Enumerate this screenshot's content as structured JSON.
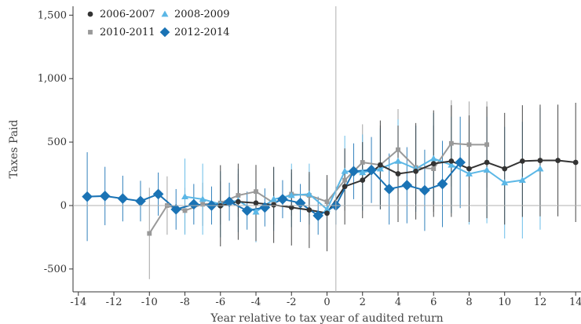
{
  "chart_data": {
    "type": "line",
    "title": "",
    "xlabel": "Year relative to tax year of audited return",
    "ylabel": "Taxes Paid",
    "xlim": [
      -14.3,
      14.3
    ],
    "ylim": [
      -680,
      1570
    ],
    "xticks": [
      -14,
      -12,
      -10,
      -8,
      -6,
      -4,
      -2,
      0,
      2,
      4,
      6,
      8,
      10,
      12,
      14
    ],
    "xtick_labels": [
      "-14",
      "-12",
      "-10",
      "-8",
      "-6",
      "-4",
      "-2",
      "0",
      "2",
      "4",
      "6",
      "8",
      "10",
      "12",
      "14"
    ],
    "yticks": [
      -500,
      0,
      500,
      1000,
      1500
    ],
    "ytick_labels": [
      "-500",
      "0",
      "500",
      "1,000",
      "1,500"
    ],
    "reference_lines": {
      "vertical_x": 0.5,
      "horizontal_y": 0
    },
    "grid": false,
    "legend_position": "top-left",
    "series": [
      {
        "name": "2006-2007",
        "color": "#333333",
        "marker": "circle",
        "x": [
          -6,
          -5,
          -4,
          -3,
          -2,
          -1,
          0,
          1,
          2,
          3,
          4,
          5,
          6,
          7,
          8,
          9,
          10,
          11,
          12,
          13,
          14
        ],
        "y": [
          -2,
          30,
          20,
          5,
          -15,
          -35,
          -60,
          150,
          200,
          320,
          250,
          270,
          330,
          350,
          290,
          340,
          290,
          350,
          355,
          355,
          340
        ],
        "err": [
          320,
          300,
          300,
          300,
          300,
          300,
          300,
          300,
          300,
          350,
          380,
          380,
          420,
          440,
          420,
          440,
          440,
          440,
          440,
          440,
          470
        ]
      },
      {
        "name": "2008-2009",
        "color": "#5bb7e6",
        "marker": "triangle",
        "x": [
          -8,
          -7,
          -6,
          -5,
          -4,
          -3,
          -2,
          -1,
          0,
          1,
          2,
          3,
          4,
          5,
          6,
          7,
          8,
          9,
          10,
          11,
          12
        ],
        "y": [
          70,
          50,
          10,
          40,
          -50,
          50,
          80,
          90,
          -30,
          270,
          260,
          290,
          350,
          290,
          370,
          320,
          250,
          280,
          180,
          200,
          290
        ],
        "err": [
          300,
          280,
          260,
          250,
          240,
          250,
          250,
          240,
          240,
          280,
          300,
          320,
          330,
          340,
          360,
          380,
          400,
          420,
          440,
          460,
          480
        ]
      },
      {
        "name": "2010-2011",
        "color": "#999999",
        "marker": "square",
        "x": [
          -10,
          -9,
          -8,
          -7,
          -6,
          -5,
          -4,
          -3,
          -2,
          -1,
          0,
          1,
          2,
          3,
          4,
          5,
          6,
          7,
          8,
          9
        ],
        "y": [
          -220,
          0,
          -40,
          10,
          20,
          80,
          110,
          20,
          90,
          80,
          30,
          200,
          340,
          320,
          440,
          300,
          290,
          490,
          480,
          480
        ],
        "err": [
          360,
          230,
          180,
          170,
          170,
          170,
          170,
          170,
          170,
          170,
          180,
          240,
          300,
          310,
          320,
          330,
          340,
          340,
          340,
          340
        ]
      }
    ]
  },
  "extra_series": {
    "name": "2012-2014",
    "color": "#1a73b5",
    "marker": "diamond",
    "x": [
      -13.5,
      -12.5,
      -11.5,
      -10.5,
      -9.5,
      -8.5,
      -7.5,
      -6.5,
      -5.5,
      -4.5,
      -3.5,
      -2.5,
      -1.5,
      -0.5,
      0.5,
      1.5,
      2.5,
      3.5,
      4.5,
      5.5,
      6.5,
      7.5
    ],
    "y": [
      70,
      75,
      55,
      35,
      90,
      -30,
      10,
      0,
      30,
      -40,
      -15,
      50,
      20,
      -80,
      0,
      270,
      280,
      130,
      160,
      120,
      170,
      340
    ],
    "err": [
      350,
      230,
      180,
      160,
      170,
      160,
      160,
      150,
      150,
      150,
      150,
      150,
      150,
      150,
      150,
      220,
      260,
      280,
      300,
      320,
      340,
      360
    ]
  }
}
